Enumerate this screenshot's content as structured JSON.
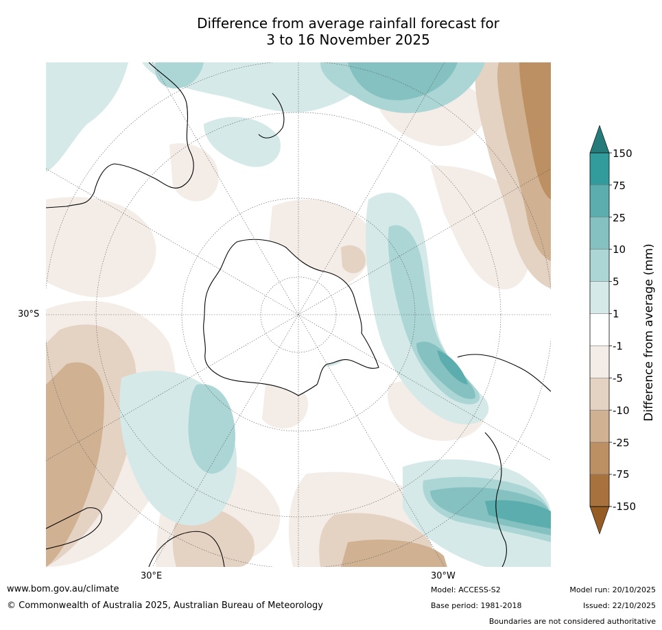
{
  "title": {
    "line1": "Difference from average rainfall forecast for",
    "line2": "3 to 16 November 2025"
  },
  "map": {
    "projection": "south polar stereographic",
    "lat_label": "30°S",
    "lon_labels": {
      "east": "30°E",
      "west": "30°W"
    }
  },
  "colorbar": {
    "title": "Difference from average (mm)",
    "levels": [
      "150",
      "75",
      "25",
      "10",
      "5",
      "1",
      "-1",
      "-5",
      "-10",
      "-25",
      "-75",
      "-150"
    ],
    "colors": {
      "over": "#257a7a",
      "b150_75": "#329b9b",
      "b75_25": "#5cadad",
      "b25_10": "#85c1c1",
      "b10_5": "#acd5d5",
      "b5_1": "#d4e9e8",
      "b1_m1": "#ffffff",
      "bm1_m5": "#f4ece7",
      "bm5_m10": "#e4d2c3",
      "bm10_m25": "#d0b293",
      "bm25_m75": "#bd9063",
      "bm75_m150": "#a8723f",
      "under": "#955d25"
    }
  },
  "footer": {
    "url": "www.bom.gov.au/climate",
    "copyright": "© Commonwealth of Australia 2025, Australian Bureau of Meteorology",
    "model": "Model: ACCESS-S2",
    "base_period": "Base period: 1981-2018",
    "model_run": "Model run: 20/10/2025",
    "issued": "Issued: 22/10/2025",
    "disclaimer": "Boundaries are not considered authoritative"
  }
}
